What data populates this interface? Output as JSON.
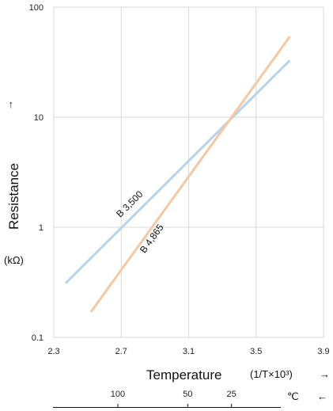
{
  "chart_data": {
    "type": "line",
    "x_scale": "linear",
    "y_scale": "log",
    "xlim": [
      2.3,
      3.9
    ],
    "ylim": [
      0.1,
      100
    ],
    "x_ticks": [
      2.3,
      2.7,
      3.1,
      3.5,
      3.9
    ],
    "x_tick_labels": [
      "2.3",
      "2.7",
      "3.1",
      "3.5",
      "3.9"
    ],
    "y_ticks": [
      0.1,
      1,
      10,
      100
    ],
    "y_tick_labels": [
      "0.1",
      "1",
      "10",
      "100"
    ],
    "grid": true,
    "xlabel": "Temperature",
    "xlabel_unit": "(1/T×10³)",
    "x_arrow": "→",
    "ylabel": "Resistance",
    "ylabel_unit": "(kΩ)",
    "y_arrow": "→",
    "secondary_x_axis": {
      "ticks": [
        100,
        50,
        25
      ],
      "tick_labels": [
        "100",
        "50",
        "25"
      ],
      "unit": "℃",
      "arrow": "←"
    },
    "series": [
      {
        "name": "B 3,500",
        "color": "#b7d3ea",
        "x": [
          2.37,
          3.7
        ],
        "y": [
          0.31,
          32.8
        ]
      },
      {
        "name": "B 4,865",
        "color": "#f6c7a5",
        "x": [
          2.52,
          3.7
        ],
        "y": [
          0.17,
          54
        ]
      }
    ]
  }
}
